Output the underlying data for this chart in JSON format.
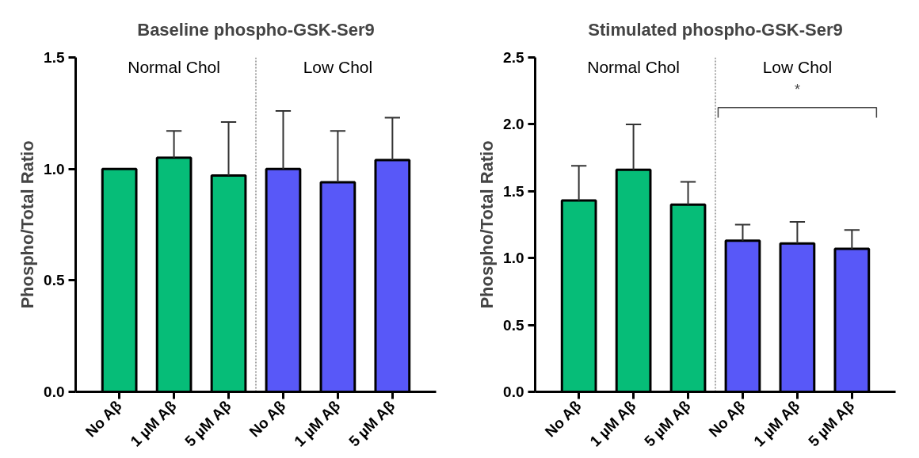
{
  "chart_data": [
    {
      "type": "bar",
      "title": "Baseline phospho-GSK-Ser9",
      "ylabel": "Phospho/Total Ratio",
      "categories": [
        "No Aβ",
        "1 µM Aβ",
        "5 µM Aβ",
        "No Aβ",
        "1 µM Aβ",
        "5 µM Aβ"
      ],
      "series": [
        {
          "color": "#06bd78",
          "values": [
            1.0,
            1.05,
            0.97,
            null,
            null,
            null
          ],
          "errors": [
            null,
            [
              1.05,
              1.17
            ],
            [
              0.97,
              1.21
            ],
            null,
            null,
            null
          ]
        },
        {
          "color": "#5858f8",
          "values": [
            null,
            null,
            null,
            1.0,
            0.94,
            1.04
          ],
          "errors": [
            null,
            null,
            null,
            [
              1.0,
              1.26
            ],
            [
              0.94,
              1.17
            ],
            [
              1.04,
              1.23
            ]
          ]
        }
      ],
      "annotations": [
        "Normal Chol",
        "Low Chol"
      ],
      "ylim": [
        0,
        1.5
      ],
      "yticks": [
        {
          "value": 0,
          "label": "0.0"
        },
        0.5,
        {
          "value": 1,
          "label": "1.0"
        },
        1.5
      ],
      "grid": false,
      "legend": false
    },
    {
      "type": "bar",
      "title": "Stimulated phospho-GSK-Ser9",
      "ylabel": "Phospho/Total Ratio",
      "categories": [
        "No Aβ",
        "1 µM Aβ",
        "5 µM Aβ",
        "No Aβ",
        "1 µM Aβ",
        "5 µM Aβ"
      ],
      "series": [
        {
          "color": "#06bd78",
          "values": [
            1.43,
            1.66,
            1.4,
            null,
            null,
            null
          ],
          "errors": [
            [
              1.43,
              1.69
            ],
            [
              1.66,
              2.0
            ],
            [
              1.4,
              1.57
            ],
            null,
            null,
            null
          ]
        },
        {
          "color": "#5858f8",
          "values": [
            null,
            null,
            null,
            1.13,
            1.11,
            1.07
          ],
          "errors": [
            null,
            null,
            null,
            [
              1.13,
              1.25
            ],
            [
              1.11,
              1.27
            ],
            [
              1.07,
              1.21
            ]
          ]
        }
      ],
      "annotations": [
        "Normal Chol",
        "Low Chol",
        "*"
      ],
      "ylim": [
        0,
        2.5
      ],
      "yticks": [
        {
          "value": 0,
          "label": "0.0"
        },
        0.5,
        {
          "value": 1,
          "label": "1.0"
        },
        1.5,
        {
          "value": 2,
          "label": "2.0"
        },
        2.5
      ],
      "grid": false,
      "legend": false
    }
  ]
}
